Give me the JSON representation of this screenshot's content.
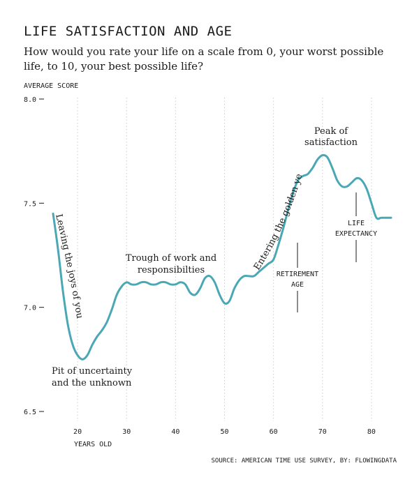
{
  "header": {
    "title": "LIFE SATISFACTION AND AGE",
    "subtitle": "How would you rate your life on a scale from 0, your worst possible life, to 10, your best possible life?"
  },
  "footer": {
    "source": "SOURCE: AMERICAN TIME USE SURVEY, BY: FLOWINGDATA"
  },
  "colors": {
    "line": "#4aa8b5",
    "text": "#1a1a1a",
    "grid": "#cccccc"
  },
  "chart_data": {
    "type": "line",
    "ylabel": "AVERAGE SCORE",
    "xlabel": "YEARS OLD",
    "xlim": [
      15,
      84
    ],
    "ylim": [
      6.5,
      8.0
    ],
    "xticks": [
      20,
      30,
      40,
      50,
      60,
      70,
      80
    ],
    "yticks": [
      {
        "value": 8.0,
        "label": "8.0"
      },
      {
        "value": 7.5,
        "label": "7.5"
      },
      {
        "value": 7.0,
        "label": "7.0"
      },
      {
        "value": 6.5,
        "label": "6.5"
      }
    ],
    "grid": "vertical dotted",
    "series": [
      {
        "x": [
          15,
          16,
          17,
          18,
          19,
          20,
          21,
          22,
          23,
          24,
          25,
          26,
          27,
          28,
          29,
          30,
          31,
          32,
          33,
          34,
          35,
          36,
          37,
          38,
          39,
          40,
          41,
          42,
          43,
          44,
          45,
          46,
          47,
          48,
          49,
          50,
          51,
          52,
          53,
          54,
          55,
          56,
          57,
          58,
          59,
          60,
          61,
          62,
          63,
          64,
          65,
          66,
          67,
          68,
          69,
          70,
          71,
          72,
          73,
          74,
          75,
          76,
          77,
          78,
          79,
          80,
          81,
          82,
          83,
          84
        ],
        "values": [
          7.45,
          7.28,
          7.08,
          6.92,
          6.82,
          6.77,
          6.75,
          6.77,
          6.82,
          6.86,
          6.89,
          6.93,
          6.99,
          7.06,
          7.1,
          7.12,
          7.11,
          7.11,
          7.12,
          7.12,
          7.11,
          7.11,
          7.12,
          7.12,
          7.11,
          7.11,
          7.12,
          7.11,
          7.07,
          7.06,
          7.09,
          7.14,
          7.15,
          7.12,
          7.06,
          7.02,
          7.03,
          7.09,
          7.13,
          7.15,
          7.15,
          7.15,
          7.17,
          7.19,
          7.21,
          7.23,
          7.3,
          7.38,
          7.47,
          7.55,
          7.61,
          7.63,
          7.64,
          7.67,
          7.71,
          7.73,
          7.72,
          7.67,
          7.61,
          7.58,
          7.58,
          7.6,
          7.62,
          7.61,
          7.57,
          7.5,
          7.43,
          7.43,
          7.43,
          7.43
        ]
      }
    ],
    "annotations": [
      {
        "id": "leaving",
        "text": "Leaving the joys of youth"
      },
      {
        "id": "pit_1",
        "text": "Pit of uncertainty"
      },
      {
        "id": "pit_2",
        "text": "and the unknown"
      },
      {
        "id": "trough_1",
        "text": "Trough of work and"
      },
      {
        "id": "trough_2",
        "text": "responsibilties"
      },
      {
        "id": "golden",
        "text": "Entering the golden years"
      },
      {
        "id": "retire_1",
        "text": "RETIREMENT"
      },
      {
        "id": "retire_2",
        "text": "AGE"
      },
      {
        "id": "peak_1",
        "text": "Peak of"
      },
      {
        "id": "peak_2",
        "text": "satisfaction"
      },
      {
        "id": "life_1",
        "text": "LIFE"
      },
      {
        "id": "life_2",
        "text": "EXPECTANCY"
      }
    ]
  }
}
